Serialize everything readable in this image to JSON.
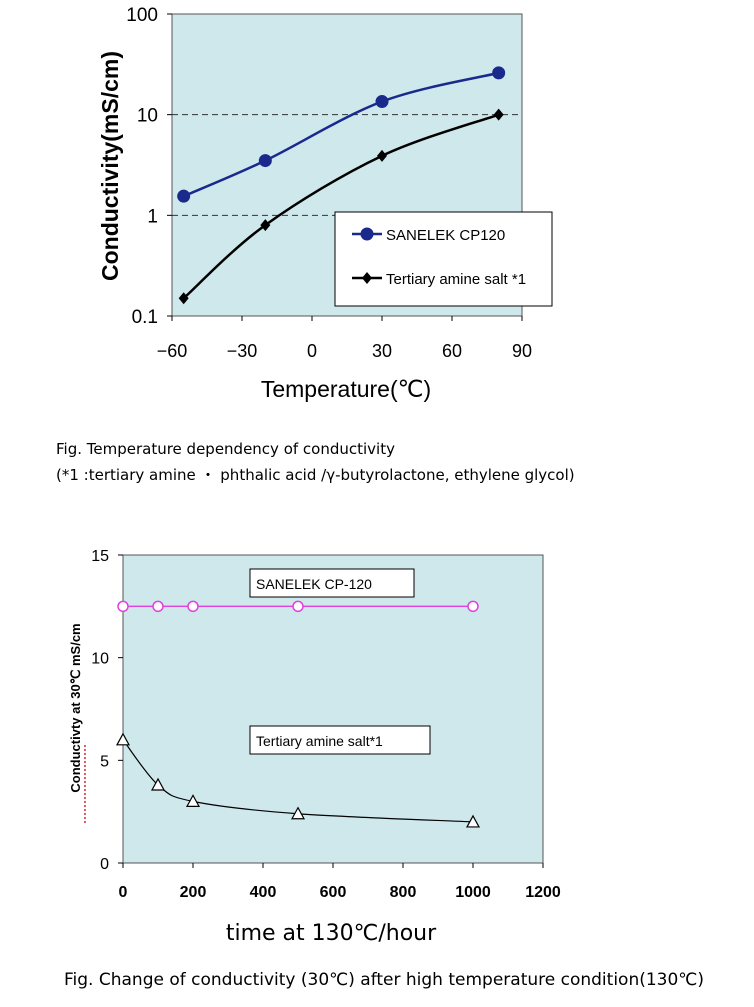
{
  "chart_data": [
    {
      "type": "line",
      "y_scale": "log",
      "xlabel": "Temperature(℃)",
      "ylabel": "Conductivity(mS/cm)",
      "xlim": [
        -60,
        90
      ],
      "ylim": [
        0.1,
        100
      ],
      "x_ticks": [
        "-60",
        "-30",
        "0",
        "30",
        "60",
        "90"
      ],
      "y_ticks": [
        "0.1",
        "1",
        "10",
        "100"
      ],
      "grid": "dashed lines at 1 and 10",
      "background": "#cfe8ec",
      "legend_position": "lower-right",
      "series": [
        {
          "name": "SANELEK CP120",
          "color": "#1a2a8c",
          "marker": "circle",
          "x": [
            -55,
            -20,
            30,
            80
          ],
          "y": [
            1.55,
            3.5,
            13.5,
            26
          ]
        },
        {
          "name": "Tertiary amine salt *1",
          "color": "#000000",
          "marker": "diamond",
          "x": [
            -55,
            -20,
            30,
            80
          ],
          "y": [
            0.15,
            0.8,
            3.9,
            10
          ]
        }
      ]
    },
    {
      "type": "line",
      "xlabel": "time at 130℃/hour",
      "ylabel": "Conductivty at 30℃ mS/cm",
      "xlim": [
        0,
        1200
      ],
      "ylim": [
        0,
        15
      ],
      "x_ticks": [
        "0",
        "200",
        "400",
        "600",
        "800",
        "1000",
        "1200"
      ],
      "y_ticks": [
        "0",
        "5",
        "10",
        "15"
      ],
      "grid": "off",
      "background": "#cfe8ec",
      "series": [
        {
          "name": "SANELEK CP-120",
          "color": "#e040e0",
          "marker": "open-circle",
          "x": [
            0,
            100,
            200,
            500,
            1000
          ],
          "y": [
            12.5,
            12.5,
            12.5,
            12.5,
            12.5
          ]
        },
        {
          "name": "Tertiary amine salt*1",
          "color": "#000000",
          "marker": "open-triangle",
          "x": [
            0,
            100,
            200,
            500,
            1000
          ],
          "y": [
            6.0,
            3.8,
            3.0,
            2.4,
            2.0
          ]
        }
      ]
    }
  ],
  "captions": {
    "fig1_line1": "Fig.   Temperature dependency of conductivity",
    "fig1_line2": "(*1 :tertiary amine ・ phthalic acid /γ-butyrolactone, ethylene glycol)",
    "fig2": "Fig.  Change of conductivity (30℃) after high temperature condition(130℃)"
  }
}
